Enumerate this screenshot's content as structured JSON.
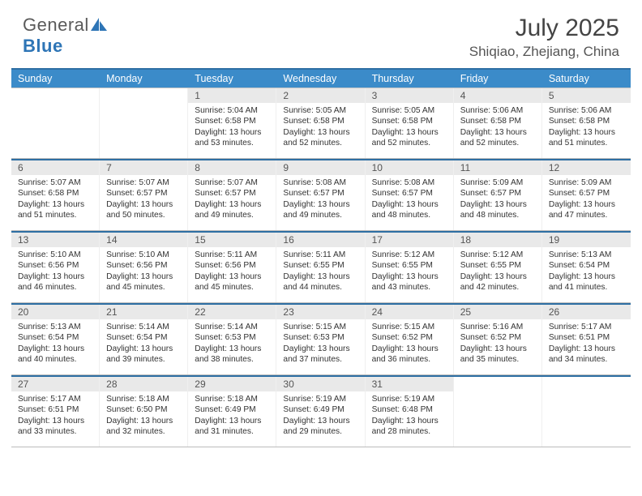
{
  "brand": {
    "text1": "General",
    "text2": "Blue"
  },
  "title": "July 2025",
  "location": "Shiqiao, Zhejiang, China",
  "colors": {
    "header_blue": "#3b8bc9",
    "rule_blue": "#2e6fa3",
    "daynum_bg": "#e9e9e9",
    "text": "#333333",
    "logo_grey": "#5a5a5a",
    "logo_blue": "#2e75b6"
  },
  "dow": [
    "Sunday",
    "Monday",
    "Tuesday",
    "Wednesday",
    "Thursday",
    "Friday",
    "Saturday"
  ],
  "weeks": [
    [
      {
        "n": "",
        "sunrise": "",
        "sunset": "",
        "daylight": ""
      },
      {
        "n": "",
        "sunrise": "",
        "sunset": "",
        "daylight": ""
      },
      {
        "n": "1",
        "sunrise": "Sunrise: 5:04 AM",
        "sunset": "Sunset: 6:58 PM",
        "daylight": "Daylight: 13 hours and 53 minutes."
      },
      {
        "n": "2",
        "sunrise": "Sunrise: 5:05 AM",
        "sunset": "Sunset: 6:58 PM",
        "daylight": "Daylight: 13 hours and 52 minutes."
      },
      {
        "n": "3",
        "sunrise": "Sunrise: 5:05 AM",
        "sunset": "Sunset: 6:58 PM",
        "daylight": "Daylight: 13 hours and 52 minutes."
      },
      {
        "n": "4",
        "sunrise": "Sunrise: 5:06 AM",
        "sunset": "Sunset: 6:58 PM",
        "daylight": "Daylight: 13 hours and 52 minutes."
      },
      {
        "n": "5",
        "sunrise": "Sunrise: 5:06 AM",
        "sunset": "Sunset: 6:58 PM",
        "daylight": "Daylight: 13 hours and 51 minutes."
      }
    ],
    [
      {
        "n": "6",
        "sunrise": "Sunrise: 5:07 AM",
        "sunset": "Sunset: 6:58 PM",
        "daylight": "Daylight: 13 hours and 51 minutes."
      },
      {
        "n": "7",
        "sunrise": "Sunrise: 5:07 AM",
        "sunset": "Sunset: 6:57 PM",
        "daylight": "Daylight: 13 hours and 50 minutes."
      },
      {
        "n": "8",
        "sunrise": "Sunrise: 5:07 AM",
        "sunset": "Sunset: 6:57 PM",
        "daylight": "Daylight: 13 hours and 49 minutes."
      },
      {
        "n": "9",
        "sunrise": "Sunrise: 5:08 AM",
        "sunset": "Sunset: 6:57 PM",
        "daylight": "Daylight: 13 hours and 49 minutes."
      },
      {
        "n": "10",
        "sunrise": "Sunrise: 5:08 AM",
        "sunset": "Sunset: 6:57 PM",
        "daylight": "Daylight: 13 hours and 48 minutes."
      },
      {
        "n": "11",
        "sunrise": "Sunrise: 5:09 AM",
        "sunset": "Sunset: 6:57 PM",
        "daylight": "Daylight: 13 hours and 48 minutes."
      },
      {
        "n": "12",
        "sunrise": "Sunrise: 5:09 AM",
        "sunset": "Sunset: 6:57 PM",
        "daylight": "Daylight: 13 hours and 47 minutes."
      }
    ],
    [
      {
        "n": "13",
        "sunrise": "Sunrise: 5:10 AM",
        "sunset": "Sunset: 6:56 PM",
        "daylight": "Daylight: 13 hours and 46 minutes."
      },
      {
        "n": "14",
        "sunrise": "Sunrise: 5:10 AM",
        "sunset": "Sunset: 6:56 PM",
        "daylight": "Daylight: 13 hours and 45 minutes."
      },
      {
        "n": "15",
        "sunrise": "Sunrise: 5:11 AM",
        "sunset": "Sunset: 6:56 PM",
        "daylight": "Daylight: 13 hours and 45 minutes."
      },
      {
        "n": "16",
        "sunrise": "Sunrise: 5:11 AM",
        "sunset": "Sunset: 6:55 PM",
        "daylight": "Daylight: 13 hours and 44 minutes."
      },
      {
        "n": "17",
        "sunrise": "Sunrise: 5:12 AM",
        "sunset": "Sunset: 6:55 PM",
        "daylight": "Daylight: 13 hours and 43 minutes."
      },
      {
        "n": "18",
        "sunrise": "Sunrise: 5:12 AM",
        "sunset": "Sunset: 6:55 PM",
        "daylight": "Daylight: 13 hours and 42 minutes."
      },
      {
        "n": "19",
        "sunrise": "Sunrise: 5:13 AM",
        "sunset": "Sunset: 6:54 PM",
        "daylight": "Daylight: 13 hours and 41 minutes."
      }
    ],
    [
      {
        "n": "20",
        "sunrise": "Sunrise: 5:13 AM",
        "sunset": "Sunset: 6:54 PM",
        "daylight": "Daylight: 13 hours and 40 minutes."
      },
      {
        "n": "21",
        "sunrise": "Sunrise: 5:14 AM",
        "sunset": "Sunset: 6:54 PM",
        "daylight": "Daylight: 13 hours and 39 minutes."
      },
      {
        "n": "22",
        "sunrise": "Sunrise: 5:14 AM",
        "sunset": "Sunset: 6:53 PM",
        "daylight": "Daylight: 13 hours and 38 minutes."
      },
      {
        "n": "23",
        "sunrise": "Sunrise: 5:15 AM",
        "sunset": "Sunset: 6:53 PM",
        "daylight": "Daylight: 13 hours and 37 minutes."
      },
      {
        "n": "24",
        "sunrise": "Sunrise: 5:15 AM",
        "sunset": "Sunset: 6:52 PM",
        "daylight": "Daylight: 13 hours and 36 minutes."
      },
      {
        "n": "25",
        "sunrise": "Sunrise: 5:16 AM",
        "sunset": "Sunset: 6:52 PM",
        "daylight": "Daylight: 13 hours and 35 minutes."
      },
      {
        "n": "26",
        "sunrise": "Sunrise: 5:17 AM",
        "sunset": "Sunset: 6:51 PM",
        "daylight": "Daylight: 13 hours and 34 minutes."
      }
    ],
    [
      {
        "n": "27",
        "sunrise": "Sunrise: 5:17 AM",
        "sunset": "Sunset: 6:51 PM",
        "daylight": "Daylight: 13 hours and 33 minutes."
      },
      {
        "n": "28",
        "sunrise": "Sunrise: 5:18 AM",
        "sunset": "Sunset: 6:50 PM",
        "daylight": "Daylight: 13 hours and 32 minutes."
      },
      {
        "n": "29",
        "sunrise": "Sunrise: 5:18 AM",
        "sunset": "Sunset: 6:49 PM",
        "daylight": "Daylight: 13 hours and 31 minutes."
      },
      {
        "n": "30",
        "sunrise": "Sunrise: 5:19 AM",
        "sunset": "Sunset: 6:49 PM",
        "daylight": "Daylight: 13 hours and 29 minutes."
      },
      {
        "n": "31",
        "sunrise": "Sunrise: 5:19 AM",
        "sunset": "Sunset: 6:48 PM",
        "daylight": "Daylight: 13 hours and 28 minutes."
      },
      {
        "n": "",
        "sunrise": "",
        "sunset": "",
        "daylight": ""
      },
      {
        "n": "",
        "sunrise": "",
        "sunset": "",
        "daylight": ""
      }
    ]
  ]
}
